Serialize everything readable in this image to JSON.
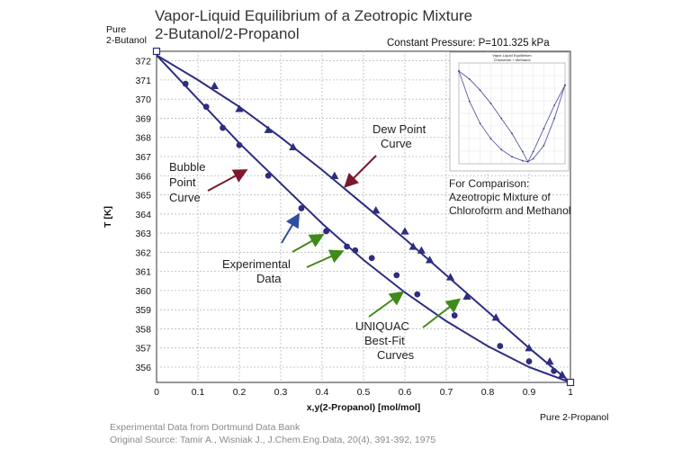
{
  "title_line1": "Vapor-Liquid Equilibrium of a Zeotropic Mixture",
  "title_line2": "2-Butanol/2-Propanol",
  "condition": "Constant Pressure: P=101.325 kPa",
  "pure_left": [
    "Pure",
    "2-Butanol"
  ],
  "pure_right": "Pure 2-Propanol",
  "footer": [
    "Experimental Data from Dortmund Data Bank",
    "Original Source: Tamir A., Wisniak J., J.Chem.Eng.Data, 20(4), 391-392, 1975"
  ],
  "annotations": {
    "dew": [
      "Dew Point",
      "Curve"
    ],
    "bubble": [
      "Bubble",
      "Point",
      "Curve"
    ],
    "experimental": [
      "Experimental",
      "Data"
    ],
    "uniquac": [
      "UNIQUAC",
      "Best-Fit",
      "Curves"
    ],
    "comparison": [
      "For Comparison:",
      "Azeotropic Mixture of",
      "Chloroform and Methanol"
    ]
  },
  "colors": {
    "curve": "#2e2d7f",
    "arrow_dew": "#7b1a2c",
    "arrow_bubble": "#7b1a2c",
    "arrow_exp_blue": "#2f4ea0",
    "arrow_exp_green": "#3f8a1a",
    "arrow_uniquac": "#3f8a1a"
  },
  "chart_data": {
    "type": "scatter",
    "xlabel": "x,y(2-Propanol) [mol/mol]",
    "ylabel": "T [K]",
    "xlim": [
      0,
      1
    ],
    "ylim": [
      355.2,
      372.5
    ],
    "xticks": [
      0,
      0.1,
      0.2,
      0.3,
      0.4,
      0.5,
      0.6,
      0.7,
      0.8,
      0.9,
      1
    ],
    "xtick_labels": [
      "0",
      "0.1",
      "0.2",
      "0.3",
      "0.4",
      "0.5",
      "0.6",
      "0.7",
      "0.8",
      "0.9",
      "1"
    ],
    "yticks": [
      356,
      357,
      358,
      359,
      360,
      361,
      362,
      363,
      364,
      365,
      366,
      367,
      368,
      369,
      370,
      371,
      372
    ],
    "grid": true,
    "series": [
      {
        "kind": "bubble_model",
        "x": [
          0,
          0.1,
          0.2,
          0.3,
          0.4,
          0.5,
          0.6,
          0.7,
          0.8,
          0.9,
          1
        ],
        "y": [
          372.3,
          370.0,
          367.7,
          365.6,
          363.5,
          361.6,
          359.9,
          358.4,
          357.1,
          356.0,
          355.2
        ]
      },
      {
        "kind": "dew_model",
        "x": [
          0,
          0.1,
          0.2,
          0.3,
          0.4,
          0.5,
          0.6,
          0.7,
          0.8,
          0.9,
          1
        ],
        "y": [
          372.3,
          371.0,
          369.6,
          368.0,
          366.3,
          364.5,
          362.7,
          360.8,
          358.9,
          357.0,
          355.2
        ]
      },
      {
        "kind": "bubble_experimental",
        "marker": "circle",
        "x": [
          0.07,
          0.12,
          0.16,
          0.2,
          0.27,
          0.35,
          0.41,
          0.46,
          0.48,
          0.52,
          0.58,
          0.63,
          0.72,
          0.83,
          0.9,
          0.96
        ],
        "y": [
          370.8,
          369.6,
          368.5,
          367.6,
          366.0,
          364.3,
          363.1,
          362.3,
          362.1,
          361.7,
          360.8,
          359.8,
          358.7,
          357.1,
          356.3,
          355.8
        ]
      },
      {
        "kind": "dew_experimental",
        "marker": "triangle",
        "x": [
          0.14,
          0.2,
          0.27,
          0.33,
          0.43,
          0.53,
          0.6,
          0.62,
          0.64,
          0.66,
          0.71,
          0.75,
          0.82,
          0.9,
          0.95,
          0.98
        ],
        "y": [
          370.7,
          369.5,
          368.4,
          367.5,
          366.0,
          364.2,
          363.1,
          362.3,
          362.1,
          361.6,
          360.7,
          359.7,
          358.6,
          357.0,
          356.3,
          355.6
        ]
      }
    ],
    "inset": {
      "type": "line",
      "title": "Vapor-Liquid Equilibrium",
      "subtitle": "Chloroform + Methanol",
      "series": [
        {
          "kind": "inset_bubble",
          "x": [
            0,
            0.1,
            0.2,
            0.3,
            0.4,
            0.5,
            0.6,
            0.65,
            0.7,
            0.8,
            0.9,
            1
          ],
          "y": [
            0.92,
            0.62,
            0.4,
            0.25,
            0.14,
            0.07,
            0.03,
            0.02,
            0.05,
            0.18,
            0.45,
            0.78
          ]
        },
        {
          "kind": "inset_dew",
          "x": [
            0,
            0.1,
            0.2,
            0.3,
            0.4,
            0.5,
            0.6,
            0.65,
            0.7,
            0.8,
            0.9,
            1
          ],
          "y": [
            0.92,
            0.84,
            0.73,
            0.6,
            0.45,
            0.3,
            0.12,
            0.02,
            0.12,
            0.35,
            0.58,
            0.78
          ]
        }
      ]
    }
  }
}
